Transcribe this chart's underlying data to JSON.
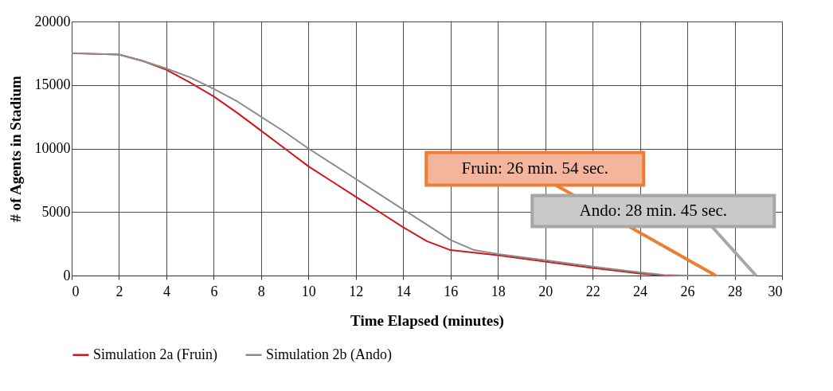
{
  "chart_data": {
    "type": "line",
    "xlabel": "Time Elapsed (minutes)",
    "ylabel": "# of Agents in Stadium",
    "xlim": [
      0,
      30
    ],
    "xticks": [
      0,
      2,
      4,
      6,
      8,
      10,
      12,
      14,
      16,
      18,
      20,
      22,
      24,
      26,
      28,
      30
    ],
    "ylim": [
      0,
      20000
    ],
    "yticks": [
      0,
      5000,
      10000,
      15000,
      20000
    ],
    "grid": true,
    "legend": "bottom",
    "marker": "none",
    "line_style": "solid",
    "series": [
      {
        "name": "Simulation 2a (Fruin)",
        "color": "#d0161c",
        "x": [
          0,
          2,
          3,
          4,
          5,
          6,
          7,
          8,
          9,
          10,
          11,
          12,
          13,
          14,
          15,
          16,
          17,
          18,
          20,
          22,
          24,
          25,
          27.2
        ],
        "values": [
          17500,
          17400,
          16900,
          16200,
          15200,
          14100,
          12800,
          11400,
          10000,
          8600,
          7400,
          6200,
          5000,
          3800,
          2700,
          2000,
          1800,
          1600,
          1100,
          600,
          150,
          0,
          0
        ]
      },
      {
        "name": "Simulation 2b (Ando)",
        "color": "#8c8c8c",
        "x": [
          0,
          2,
          3,
          4,
          5,
          6,
          7,
          8,
          9,
          10,
          11,
          12,
          13,
          14,
          15,
          16,
          17,
          18,
          20,
          22,
          24,
          25,
          26,
          28.9
        ],
        "values": [
          17500,
          17400,
          16900,
          16300,
          15600,
          14700,
          13700,
          12500,
          11300,
          10000,
          8800,
          7600,
          6400,
          5200,
          4000,
          2800,
          2000,
          1700,
          1200,
          700,
          250,
          50,
          0,
          0
        ]
      }
    ],
    "annotations": [
      {
        "text": "Fruin: 26 min. 54 sec.",
        "x": 27.2,
        "y": 0
      },
      {
        "text": "Ando: 28 min. 45 sec.",
        "x": 28.9,
        "y": 0
      }
    ]
  }
}
